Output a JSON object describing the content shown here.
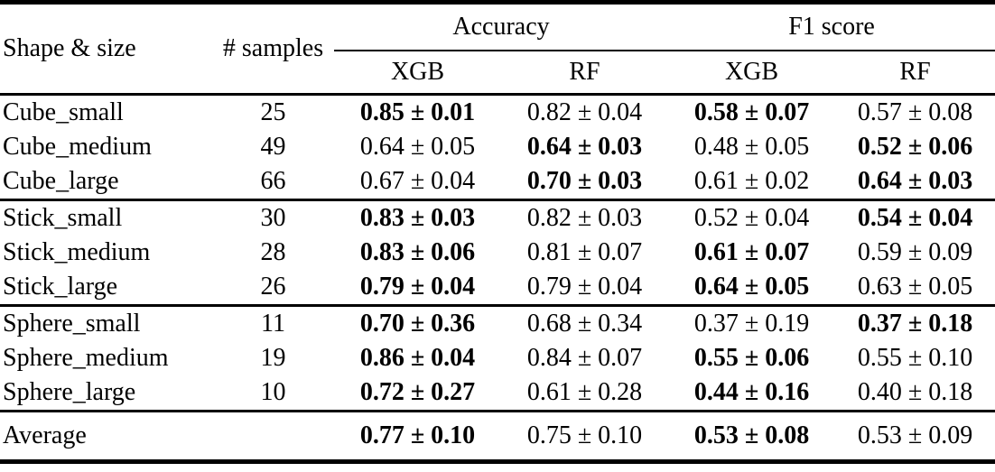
{
  "page": {
    "background_color": "#ffffff",
    "text_color": "#000000"
  },
  "table": {
    "headers": {
      "shape_size": "Shape & size",
      "samples": "# samples",
      "accuracy_group": "Accuracy",
      "f1_group": "F1 score",
      "sub": [
        "XGB",
        "RF",
        "XGB",
        "RF"
      ]
    },
    "groups": [
      {
        "name": "cube",
        "summary": false,
        "rows": [
          {
            "label": "Cube_small",
            "samples": "25",
            "cells": [
              {
                "text": "0.85 ± 0.01",
                "bold": true
              },
              {
                "text": "0.82 ± 0.04",
                "bold": false
              },
              {
                "text": "0.58 ± 0.07",
                "bold": true
              },
              {
                "text": "0.57 ± 0.08",
                "bold": false
              }
            ]
          },
          {
            "label": "Cube_medium",
            "samples": "49",
            "cells": [
              {
                "text": "0.64 ± 0.05",
                "bold": false
              },
              {
                "text": "0.64 ± 0.03",
                "bold": true
              },
              {
                "text": "0.48 ± 0.05",
                "bold": false
              },
              {
                "text": "0.52 ± 0.06",
                "bold": true
              }
            ]
          },
          {
            "label": "Cube_large",
            "samples": "66",
            "cells": [
              {
                "text": "0.67 ± 0.04",
                "bold": false
              },
              {
                "text": "0.70 ± 0.03",
                "bold": true
              },
              {
                "text": "0.61 ± 0.02",
                "bold": false
              },
              {
                "text": "0.64 ± 0.03",
                "bold": true
              }
            ]
          }
        ]
      },
      {
        "name": "stick",
        "summary": false,
        "rows": [
          {
            "label": "Stick_small",
            "samples": "30",
            "cells": [
              {
                "text": "0.83 ± 0.03",
                "bold": true
              },
              {
                "text": "0.82 ± 0.03",
                "bold": false
              },
              {
                "text": "0.52 ± 0.04",
                "bold": false
              },
              {
                "text": "0.54 ± 0.04",
                "bold": true
              }
            ]
          },
          {
            "label": "Stick_medium",
            "samples": "28",
            "cells": [
              {
                "text": "0.83 ± 0.06",
                "bold": true
              },
              {
                "text": "0.81 ± 0.07",
                "bold": false
              },
              {
                "text": "0.61 ± 0.07",
                "bold": true
              },
              {
                "text": "0.59 ± 0.09",
                "bold": false
              }
            ]
          },
          {
            "label": "Stick_large",
            "samples": "26",
            "cells": [
              {
                "text": "0.79 ± 0.04",
                "bold": true
              },
              {
                "text": "0.79 ± 0.04",
                "bold": false
              },
              {
                "text": "0.64 ± 0.05",
                "bold": true
              },
              {
                "text": "0.63 ± 0.05",
                "bold": false
              }
            ]
          }
        ]
      },
      {
        "name": "sphere",
        "summary": false,
        "rows": [
          {
            "label": "Sphere_small",
            "samples": "11",
            "cells": [
              {
                "text": "0.70 ± 0.36",
                "bold": true
              },
              {
                "text": "0.68 ± 0.34",
                "bold": false
              },
              {
                "text": "0.37 ± 0.19",
                "bold": false
              },
              {
                "text": "0.37 ± 0.18",
                "bold": true
              }
            ]
          },
          {
            "label": "Sphere_medium",
            "samples": "19",
            "cells": [
              {
                "text": "0.86 ± 0.04",
                "bold": true
              },
              {
                "text": "0.84 ± 0.07",
                "bold": false
              },
              {
                "text": "0.55 ± 0.06",
                "bold": true
              },
              {
                "text": "0.55 ± 0.10",
                "bold": false
              }
            ]
          },
          {
            "label": "Sphere_large",
            "samples": "10",
            "cells": [
              {
                "text": "0.72 ± 0.27",
                "bold": true
              },
              {
                "text": "0.61 ± 0.28",
                "bold": false
              },
              {
                "text": "0.44 ± 0.16",
                "bold": true
              },
              {
                "text": "0.40 ± 0.18",
                "bold": false
              }
            ]
          }
        ]
      },
      {
        "name": "average",
        "summary": true,
        "rows": [
          {
            "label": "Average",
            "samples": "",
            "cells": [
              {
                "text": "0.77 ± 0.10",
                "bold": true
              },
              {
                "text": "0.75 ± 0.10",
                "bold": false
              },
              {
                "text": "0.53 ± 0.08",
                "bold": true
              },
              {
                "text": "0.53 ± 0.09",
                "bold": false
              }
            ]
          }
        ]
      }
    ]
  }
}
